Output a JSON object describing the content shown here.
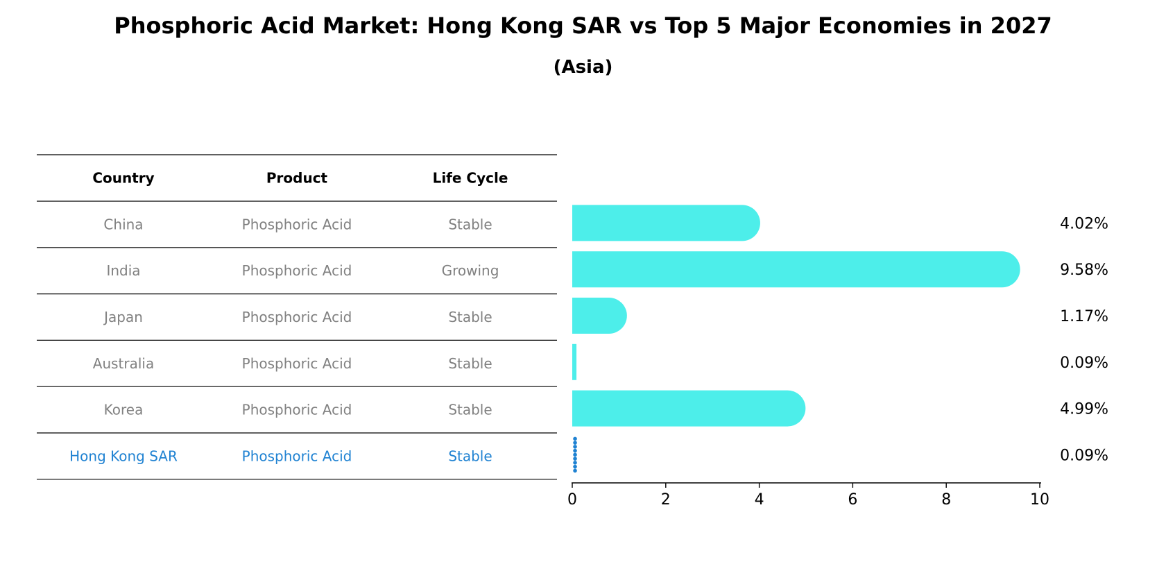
{
  "title": "Phosphoric Acid Market: Hong Kong SAR vs Top 5 Major Economies in 2027",
  "subtitle": "(Asia)",
  "table": {
    "headers": [
      "Country",
      "Product",
      "Life Cycle"
    ],
    "rows": [
      [
        "China",
        "Phosphoric Acid",
        "Stable"
      ],
      [
        "India",
        "Phosphoric Acid",
        "Growing"
      ],
      [
        "Japan",
        "Phosphoric Acid",
        "Stable"
      ],
      [
        "Australia",
        "Phosphoric Acid",
        "Stable"
      ],
      [
        "Korea",
        "Phosphoric Acid",
        "Stable"
      ],
      [
        "Hong Kong SAR",
        "Phosphoric Acid",
        "Stable"
      ]
    ],
    "highlight_row": "Hong Kong SAR"
  },
  "colors": {
    "bar": "#4deeea",
    "highlight": "#1f82d2",
    "text_muted": "#808080"
  },
  "chart_data": {
    "type": "bar",
    "orientation": "horizontal",
    "categories": [
      "China",
      "India",
      "Japan",
      "Australia",
      "Korea",
      "Hong Kong SAR"
    ],
    "values": [
      4.02,
      9.58,
      1.17,
      0.09,
      4.99,
      0.09
    ],
    "value_labels": [
      "4.02%",
      "9.58%",
      "1.17%",
      "0.09%",
      "4.99%",
      "0.09%"
    ],
    "xlim": [
      0,
      10
    ],
    "xticks": [
      0,
      2,
      4,
      6,
      8,
      10
    ],
    "xlabel": "",
    "ylabel": "",
    "grid": false,
    "legend": "none"
  }
}
